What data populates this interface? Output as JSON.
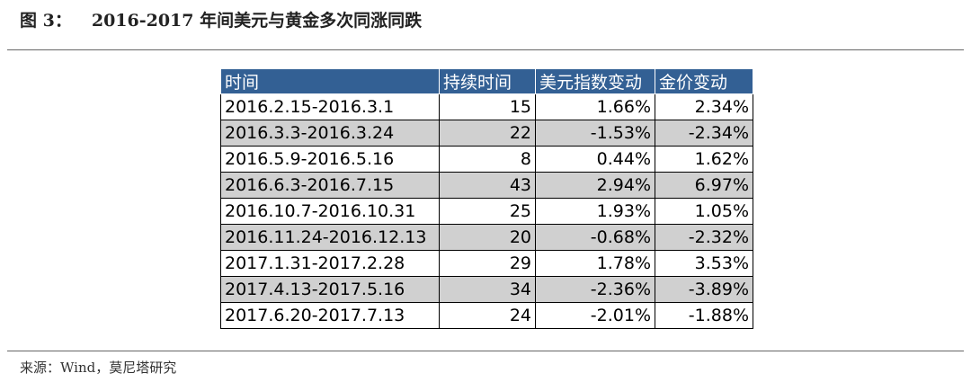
{
  "figure": {
    "label": "图 3：",
    "title": "2016-2017 年间美元与黄金多次同涨同跌"
  },
  "table": {
    "header": [
      "时间",
      "持续时间",
      "美元指数变动",
      "金价变动"
    ],
    "rows": [
      [
        "2016.2.15-2016.3.1",
        "15",
        "1.66%",
        "2.34%"
      ],
      [
        "2016.3.3-2016.3.24",
        "22",
        "-1.53%",
        "-2.34%"
      ],
      [
        "2016.5.9-2016.5.16",
        "8",
        "0.44%",
        "1.62%"
      ],
      [
        "2016.6.3-2016.7.15",
        "43",
        "2.94%",
        "6.97%"
      ],
      [
        "2016.10.7-2016.10.31",
        "25",
        "1.93%",
        "1.05%"
      ],
      [
        "2016.11.24-2016.12.13",
        "20",
        "-0.68%",
        "-2.32%"
      ],
      [
        "2017.1.31-2017.2.28",
        "29",
        "1.78%",
        "3.53%"
      ],
      [
        "2017.4.13-2017.5.16",
        "34",
        "-2.36%",
        "-3.89%"
      ],
      [
        "2017.6.20-2017.7.13",
        "24",
        "-2.01%",
        "-1.88%"
      ]
    ]
  },
  "source": "来源：Wind，莫尼塔研究"
}
